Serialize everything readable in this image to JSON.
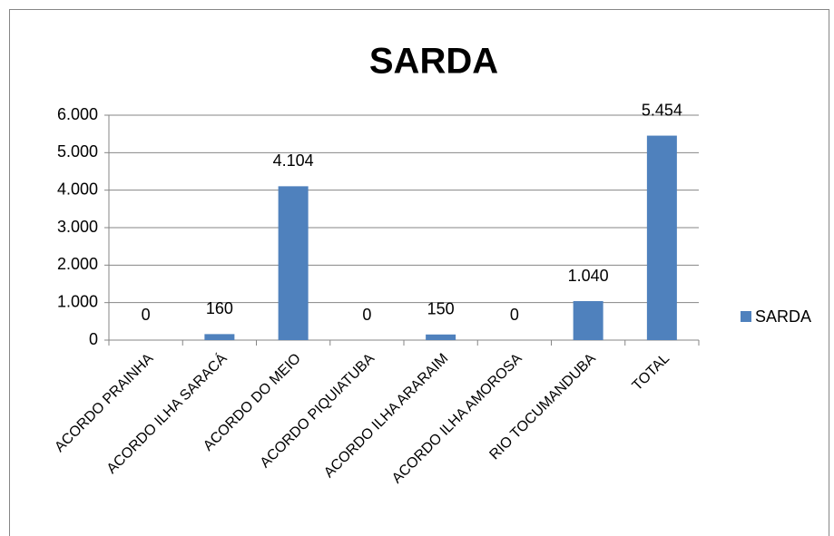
{
  "chart_data": {
    "type": "bar",
    "title": "SARDA",
    "categories": [
      "ACORDO PRAINHA",
      "ACORDO ILHA SARACÁ",
      "ACORDO DO MEIO",
      "ACORDO PIQUIATUBA",
      "ACORDO ILHA ARARAIM",
      "ACORDO ILHA AMOROSA",
      "RIO TOCUMANDUBA",
      "TOTAL"
    ],
    "series": [
      {
        "name": "SARDA",
        "color": "#4f81bd",
        "values": [
          0,
          160,
          4104,
          0,
          150,
          0,
          1040,
          5454
        ],
        "value_labels": [
          "0",
          "160",
          "4.104",
          "0",
          "150",
          "0",
          "1.040",
          "5.454"
        ]
      }
    ],
    "ylim": [
      0,
      6000
    ],
    "yticks": [
      0,
      {
        "value": 1000,
        "label": "1.000"
      },
      {
        "value": 2000,
        "label": "2.000"
      },
      {
        "value": 3000,
        "label": "3.000"
      },
      {
        "value": 4000,
        "label": "4.000"
      },
      {
        "value": 5000,
        "label": "5.000"
      },
      {
        "value": 6000,
        "label": "6.000"
      }
    ],
    "grid": true,
    "legend": "right"
  }
}
